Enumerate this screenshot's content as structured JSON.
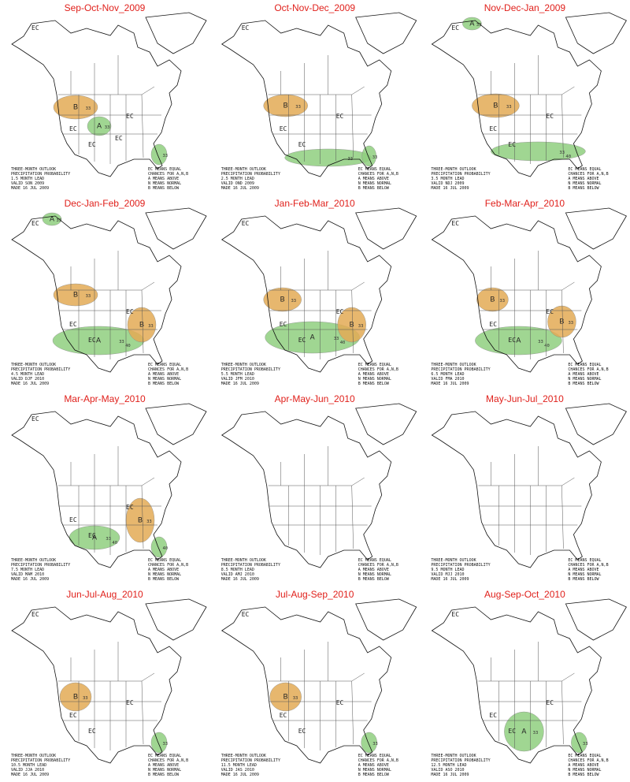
{
  "panels": [
    {
      "title": "Sep-Oct-Nov_2009",
      "ec": [
        "EC",
        "EC",
        "EC",
        "EC",
        "EC"
      ],
      "regions": [
        {
          "category": "B",
          "color": "#e3aa55",
          "labels": [
            "33"
          ]
        },
        {
          "category": "A",
          "color": "#8fcf7f",
          "labels": [
            "33"
          ]
        },
        {
          "color": "#8fcf7f",
          "labels": [
            "33"
          ]
        }
      ],
      "legend": [
        "THREE-MONTH OUTLOOK",
        "PRECIPITATION PROBABILITY",
        "1.5 MONTH LEAD",
        "VALID SON 2009",
        "MADE 16 JUL 2009"
      ],
      "key": [
        "EC MEANS EQUAL",
        "CHANCES FOR A,N,B",
        "A MEANS ABOVE",
        "N MEANS NORMAL",
        "B MEANS BELOW"
      ]
    },
    {
      "title": "Oct-Nov-Dec_2009",
      "ec": [
        "EC",
        "EC",
        "EC",
        "EC"
      ],
      "regions": [
        {
          "category": "B",
          "color": "#e3aa55",
          "labels": [
            "33"
          ]
        },
        {
          "color": "#8fcf7f",
          "labels": [
            "33"
          ]
        },
        {
          "color": "#8fcf7f",
          "labels": [
            "33"
          ]
        }
      ],
      "legend": [
        "THREE-MONTH OUTLOOK",
        "PRECIPITATION PROBABILITY",
        "2.5 MONTH LEAD",
        "VALID OND 2009",
        "MADE 16 JUL 2009"
      ],
      "key": [
        "EC MEANS EQUAL",
        "CHANCES FOR A,N,B",
        "A MEANS ABOVE",
        "N MEANS NORMAL",
        "B MEANS BELOW"
      ]
    },
    {
      "title": "Nov-Dec-Jan_2009",
      "ec": [
        "EC",
        "EC",
        "EC",
        "EC"
      ],
      "regions": [
        {
          "category": "A",
          "color": "#8fcf7f",
          "labels": [
            "33"
          ]
        },
        {
          "category": "B",
          "color": "#e3aa55",
          "labels": [
            "33"
          ]
        },
        {
          "color": "#8fcf7f",
          "labels": [
            "33",
            "40"
          ]
        }
      ],
      "legend": [
        "THREE-MONTH OUTLOOK",
        "PRECIPITATION PROBABILITY",
        "3.5 MONTH LEAD",
        "VALID NDJ 2009",
        "MADE 16 JUL 2009"
      ],
      "key": [
        "EC MEANS EQUAL",
        "CHANCES FOR A,N,B",
        "A MEANS ABOVE",
        "N MEANS NORMAL",
        "B MEANS BELOW"
      ]
    },
    {
      "title": "Dec-Jan-Feb_2009",
      "ec": [
        "EC",
        "EC",
        "EC",
        "EC"
      ],
      "regions": [
        {
          "category": "A",
          "color": "#8fcf7f",
          "labels": [
            "33"
          ]
        },
        {
          "category": "B",
          "color": "#e3aa55",
          "labels": [
            "33"
          ]
        },
        {
          "category": "A",
          "color": "#8fcf7f",
          "labels": [
            "33",
            "40"
          ]
        },
        {
          "category": "B",
          "color": "#e3aa55",
          "labels": [
            "33"
          ]
        }
      ],
      "legend": [
        "THREE-MONTH OUTLOOK",
        "PRECIPITATION PROBABILITY",
        "4.5 MONTH LEAD",
        "VALID DJF 2010",
        "MADE 16 JUL 2009"
      ],
      "key": [
        "EC MEANS EQUAL",
        "CHANCES FOR A,N,B",
        "A MEANS ABOVE",
        "N MEANS NORMAL",
        "B MEANS BELOW"
      ]
    },
    {
      "title": "Jan-Feb-Mar_2010",
      "ec": [
        "EC",
        "EC",
        "EC",
        "EC"
      ],
      "regions": [
        {
          "category": "B",
          "color": "#e3aa55",
          "labels": [
            "33"
          ]
        },
        {
          "category": "A",
          "color": "#8fcf7f",
          "labels": [
            "33",
            "40"
          ]
        },
        {
          "category": "B",
          "color": "#e3aa55",
          "labels": [
            "33"
          ]
        }
      ],
      "legend": [
        "THREE-MONTH OUTLOOK",
        "PRECIPITATION PROBABILITY",
        "5.5 MONTH LEAD",
        "VALID JFM 2010",
        "MADE 16 JUL 2009"
      ],
      "key": [
        "EC MEANS EQUAL",
        "CHANCES FOR A,N,B",
        "A MEANS ABOVE",
        "N MEANS NORMAL",
        "B MEANS BELOW"
      ]
    },
    {
      "title": "Feb-Mar-Apr_2010",
      "ec": [
        "EC",
        "EC",
        "EC",
        "EC"
      ],
      "regions": [
        {
          "category": "B",
          "color": "#e3aa55",
          "labels": [
            "33"
          ]
        },
        {
          "category": "A",
          "color": "#8fcf7f",
          "labels": [
            "33",
            "40"
          ]
        },
        {
          "category": "B",
          "color": "#e3aa55",
          "labels": [
            "33"
          ]
        }
      ],
      "legend": [
        "THREE-MONTH OUTLOOK",
        "PRECIPITATION PROBABILITY",
        "6.5 MONTH LEAD",
        "VALID FMA 2010",
        "MADE 16 JUL 2009"
      ],
      "key": [
        "EC MEANS EQUAL",
        "CHANCES FOR A,N,B",
        "A MEANS ABOVE",
        "N MEANS NORMAL",
        "B MEANS BELOW"
      ]
    },
    {
      "title": "Mar-Apr-May_2010",
      "ec": [
        "EC",
        "EC",
        "EC",
        "EC"
      ],
      "regions": [
        {
          "category": "A",
          "color": "#8fcf7f",
          "labels": [
            "33",
            "40"
          ]
        },
        {
          "category": "B",
          "color": "#e3aa55",
          "labels": [
            "33"
          ]
        },
        {
          "color": "#8fcf7f",
          "labels": [
            "40"
          ]
        }
      ],
      "legend": [
        "THREE-MONTH OUTLOOK",
        "PRECIPITATION PROBABILITY",
        "7.5 MONTH LEAD",
        "VALID MAM 2010",
        "MADE 16 JUL 2009"
      ],
      "key": [
        "EC MEANS EQUAL",
        "CHANCES FOR A,N,B",
        "A MEANS ABOVE",
        "N MEANS NORMAL",
        "B MEANS BELOW"
      ]
    },
    {
      "title": "Apr-May-Jun_2010",
      "ec": [],
      "regions": [],
      "legend": [
        "THREE-MONTH OUTLOOK",
        "PRECIPITATION PROBABILITY",
        "8.5 MONTH LEAD",
        "VALID AMJ 2010",
        "MADE 16 JUL 2009"
      ],
      "key": [
        "EC MEANS EQUAL",
        "CHANCES FOR A,N,B",
        "A MEANS ABOVE",
        "N MEANS NORMAL",
        "B MEANS BELOW"
      ]
    },
    {
      "title": "May-Jun-Jul_2010",
      "ec": [],
      "regions": [],
      "legend": [
        "THREE-MONTH OUTLOOK",
        "PRECIPITATION PROBABILITY",
        "9.5 MONTH LEAD",
        "VALID MJJ 2010",
        "MADE 16 JUL 2009"
      ],
      "key": [
        "EC MEANS EQUAL",
        "CHANCES FOR A,N,B",
        "A MEANS ABOVE",
        "N MEANS NORMAL",
        "B MEANS BELOW"
      ]
    },
    {
      "title": "Jun-Jul-Aug_2010",
      "ec": [
        "EC",
        "EC",
        "EC",
        "EC"
      ],
      "regions": [
        {
          "category": "B",
          "color": "#e3aa55",
          "labels": [
            "33"
          ]
        },
        {
          "color": "#8fcf7f",
          "labels": [
            "33"
          ]
        }
      ],
      "legend": [
        "THREE-MONTH OUTLOOK",
        "PRECIPITATION PROBABILITY",
        "10.5 MONTH LEAD",
        "VALID JJA 2010",
        "MADE 16 JUL 2009"
      ],
      "key": [
        "EC MEANS EQUAL",
        "CHANCES FOR A,N,B",
        "A MEANS ABOVE",
        "N MEANS NORMAL",
        "B MEANS BELOW"
      ]
    },
    {
      "title": "Jul-Aug-Sep_2010",
      "ec": [
        "EC",
        "EC",
        "EC",
        "EC"
      ],
      "regions": [
        {
          "category": "B",
          "color": "#e3aa55",
          "labels": [
            "33"
          ]
        },
        {
          "color": "#8fcf7f",
          "labels": [
            "33"
          ]
        }
      ],
      "legend": [
        "THREE-MONTH OUTLOOK",
        "PRECIPITATION PROBABILITY",
        "11.5 MONTH LEAD",
        "VALID JAS 2010",
        "MADE 16 JUL 2009"
      ],
      "key": [
        "EC MEANS EQUAL",
        "CHANCES FOR A,N,B",
        "A MEANS ABOVE",
        "N MEANS NORMAL",
        "B MEANS BELOW"
      ]
    },
    {
      "title": "Aug-Sep-Oct_2010",
      "ec": [
        "EC",
        "EC",
        "EC",
        "EC"
      ],
      "regions": [
        {
          "category": "A",
          "color": "#8fcf7f",
          "labels": [
            "33"
          ]
        },
        {
          "color": "#8fcf7f",
          "labels": [
            "33"
          ]
        }
      ],
      "legend": [
        "THREE-MONTH OUTLOOK",
        "PRECIPITATION PROBABILITY",
        "12.5 MONTH LEAD",
        "VALID ASO 2010",
        "MADE 16 JUL 2009"
      ],
      "key": [
        "EC MEANS EQUAL",
        "CHANCES FOR A,N,B",
        "A MEANS ABOVE",
        "N MEANS NORMAL",
        "B MEANS BELOW"
      ]
    }
  ]
}
